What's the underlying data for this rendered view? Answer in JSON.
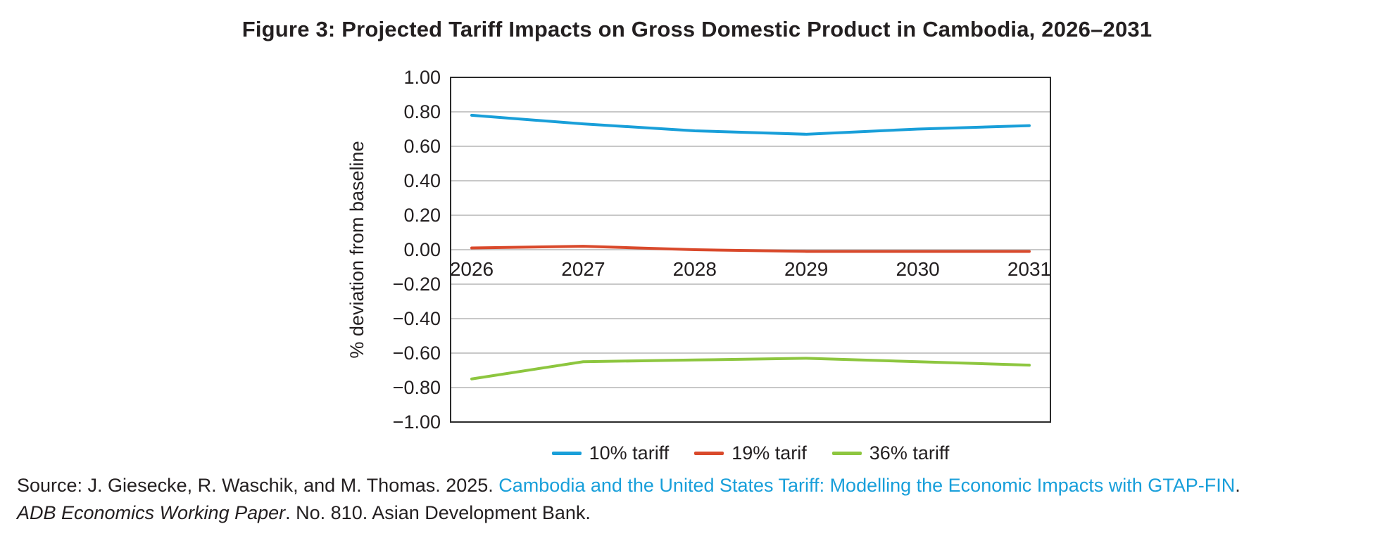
{
  "title": "Figure 3: Projected Tariff Impacts on Gross Domestic Product in Cambodia, 2026–2031",
  "chart_data": {
    "type": "line",
    "x": [
      2026,
      2027,
      2028,
      2029,
      2030,
      2031
    ],
    "series": [
      {
        "name": "10% tariff",
        "color": "#199fd9",
        "values": [
          0.78,
          0.73,
          0.69,
          0.67,
          0.7,
          0.72
        ]
      },
      {
        "name": "19% tarif",
        "color": "#d9492b",
        "values": [
          0.01,
          0.02,
          0.0,
          -0.01,
          -0.01,
          -0.01
        ]
      },
      {
        "name": "36% tariff",
        "color": "#8dc63f",
        "values": [
          -0.75,
          -0.65,
          -0.64,
          -0.63,
          -0.65,
          -0.67
        ]
      }
    ],
    "xlabel": "",
    "ylabel": "% deviation from baseline",
    "ylim": [
      -1.0,
      1.0
    ],
    "ytick_step": 0.2,
    "yticks": [
      "1.00",
      "0.80",
      "0.60",
      "0.40",
      "0.20",
      "0.00",
      "−0.20",
      "−0.40",
      "−0.60",
      "−0.80",
      "−1.00"
    ],
    "grid": true,
    "legend_position": "bottom",
    "x_labels_inside_below_zero_line": true
  },
  "source": {
    "line1_prefix": "Source: J. Giesecke, R. Waschik, and M. Thomas. 2025. ",
    "line1_link": "Cambodia and the United States Tariff: Modelling the Economic Impacts with GTAP-FIN",
    "line1_suffix": ".",
    "line2_italic": "ADB Economics Working Paper",
    "line2_rest": ". No. 810. Asian Development Bank."
  },
  "colors": {
    "text": "#231f20",
    "grid": "#b5b5b5",
    "border": "#2b2b2b",
    "link": "#189fda"
  }
}
